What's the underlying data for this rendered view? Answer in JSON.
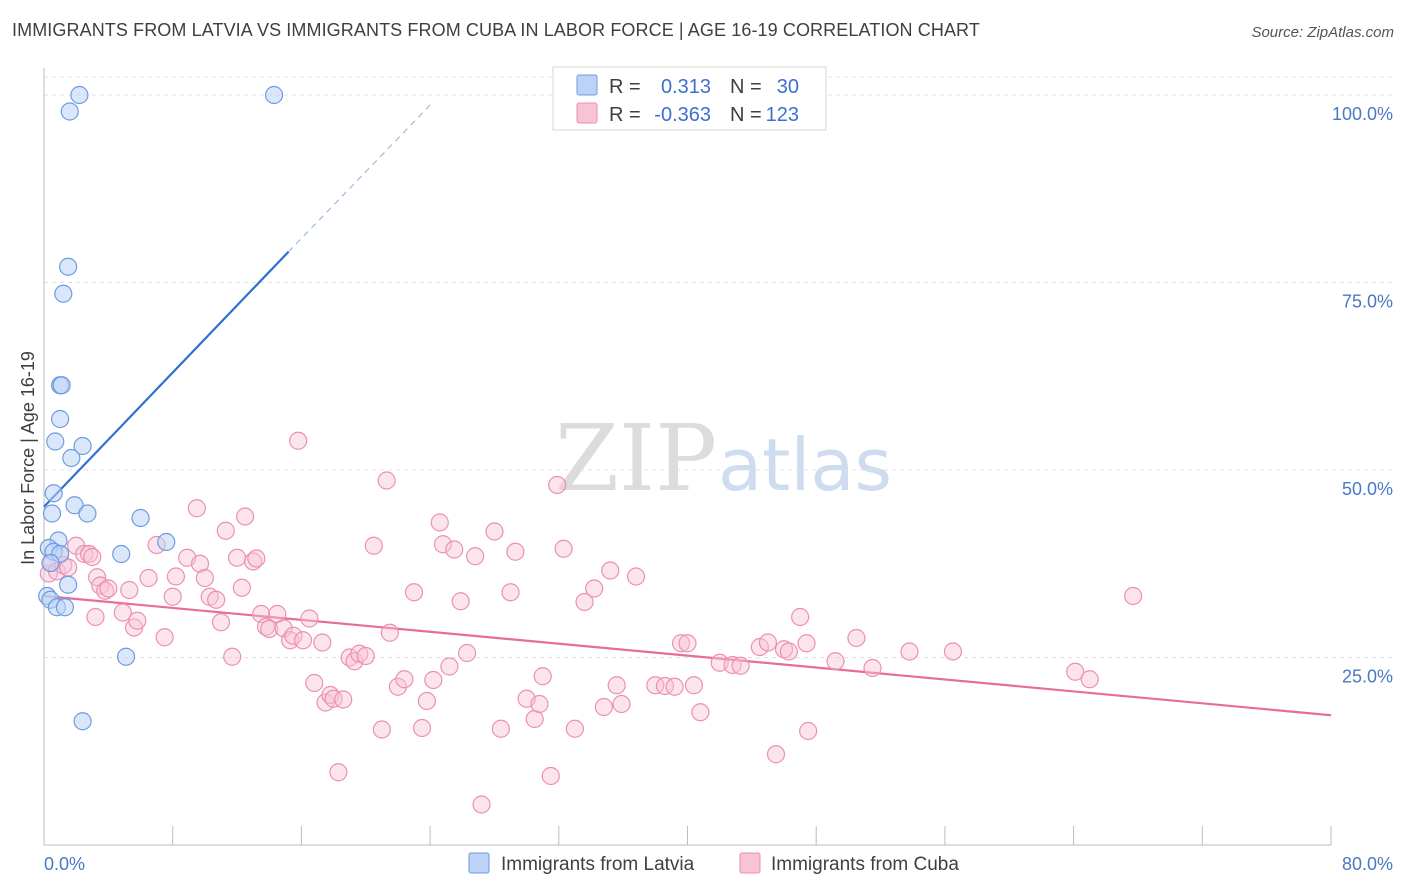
{
  "title": "IMMIGRANTS FROM LATVIA VS IMMIGRANTS FROM CUBA IN LABOR FORCE | AGE 16-19 CORRELATION CHART",
  "source": "Source: ZipAtlas.com",
  "watermark": {
    "zip": "ZIP",
    "atlas": "atlas"
  },
  "colors": {
    "latvia_fill": "#bcd3f5",
    "latvia_stroke": "#6d9be0",
    "latvia_line": "#2f6fd1",
    "cuba_fill": "#f8c3d6",
    "cuba_stroke": "#ec8fb1",
    "cuba_line": "#e86b9b",
    "tick_text": "#4a78c2",
    "grid": "#e0e0e0"
  },
  "legend": {
    "rows": [
      {
        "r_label": "R =",
        "r_value": "0.313",
        "n_label": "N =",
        "n_value": "30"
      },
      {
        "r_label": "R =",
        "r_value": "-0.363",
        "n_label": "N =",
        "n_value": "123"
      }
    ]
  },
  "chart_data": {
    "type": "scatter",
    "title": "IMMIGRANTS FROM LATVIA VS IMMIGRANTS FROM CUBA IN LABOR FORCE | AGE 16-19 CORRELATION CHART",
    "xlabel": "",
    "ylabel": "In Labor Force | Age 16-19",
    "xlim": [
      0,
      80
    ],
    "ylim": [
      0,
      102
    ],
    "x_tick_labels": [
      "0.0%",
      "80.0%"
    ],
    "y_ticks": [
      25,
      50,
      75,
      100
    ],
    "y_tick_labels": [
      "25.0%",
      "50.0%",
      "75.0%",
      "100.0%"
    ],
    "legend_position": "top-center",
    "series": [
      {
        "name": "Immigrants from Latvia",
        "R": 0.313,
        "N": 30,
        "trend": {
          "x_start": 0.0,
          "y_start": 45.1,
          "x_end": 15.2,
          "y_end": 79.1,
          "dashed_to_x": 24.2,
          "dashed_to_y": 99.1
        },
        "points": [
          [
            2.2,
            100.0
          ],
          [
            14.3,
            100.0
          ],
          [
            1.6,
            97.8
          ],
          [
            1.5,
            77.1
          ],
          [
            1.2,
            73.5
          ],
          [
            1.0,
            61.3
          ],
          [
            1.1,
            61.3
          ],
          [
            1.0,
            56.8
          ],
          [
            0.7,
            53.8
          ],
          [
            2.4,
            53.2
          ],
          [
            1.7,
            51.6
          ],
          [
            0.6,
            46.9
          ],
          [
            1.9,
            45.3
          ],
          [
            2.7,
            44.2
          ],
          [
            6.0,
            43.6
          ],
          [
            0.5,
            44.2
          ],
          [
            7.6,
            40.4
          ],
          [
            0.9,
            40.6
          ],
          [
            0.3,
            39.6
          ],
          [
            0.6,
            39.1
          ],
          [
            1.0,
            38.8
          ],
          [
            4.8,
            38.8
          ],
          [
            0.4,
            37.6
          ],
          [
            1.5,
            34.7
          ],
          [
            0.2,
            33.2
          ],
          [
            0.4,
            32.7
          ],
          [
            0.8,
            31.7
          ],
          [
            1.3,
            31.7
          ],
          [
            5.1,
            25.1
          ],
          [
            2.4,
            16.5
          ]
        ]
      },
      {
        "name": "Immigrants from Cuba",
        "R": -0.363,
        "N": 123,
        "trend": {
          "x_start": 0.0,
          "y_start": 33.2,
          "x_end": 80.0,
          "y_end": 17.3
        },
        "points": [
          [
            0.3,
            36.2
          ],
          [
            0.5,
            37.6
          ],
          [
            0.8,
            36.5
          ],
          [
            1.0,
            38.8
          ],
          [
            1.2,
            37.3
          ],
          [
            1.5,
            37.0
          ],
          [
            2.0,
            39.9
          ],
          [
            2.5,
            38.8
          ],
          [
            2.8,
            38.8
          ],
          [
            3.0,
            38.4
          ],
          [
            3.3,
            35.7
          ],
          [
            3.5,
            34.6
          ],
          [
            3.8,
            33.9
          ],
          [
            4.0,
            34.2
          ],
          [
            3.2,
            30.4
          ],
          [
            4.9,
            31.0
          ],
          [
            5.3,
            34.0
          ],
          [
            5.6,
            29.0
          ],
          [
            5.8,
            29.9
          ],
          [
            6.5,
            35.6
          ],
          [
            7.0,
            40.0
          ],
          [
            7.5,
            27.7
          ],
          [
            8.0,
            33.1
          ],
          [
            8.2,
            35.8
          ],
          [
            8.9,
            38.3
          ],
          [
            9.7,
            37.5
          ],
          [
            10.0,
            35.6
          ],
          [
            9.5,
            44.9
          ],
          [
            10.3,
            33.1
          ],
          [
            10.7,
            32.7
          ],
          [
            11.0,
            29.7
          ],
          [
            11.3,
            41.9
          ],
          [
            11.7,
            25.1
          ],
          [
            12.0,
            38.3
          ],
          [
            12.3,
            34.3
          ],
          [
            12.5,
            43.8
          ],
          [
            13.0,
            37.8
          ],
          [
            13.2,
            38.2
          ],
          [
            13.5,
            30.8
          ],
          [
            13.8,
            29.1
          ],
          [
            14.0,
            28.8
          ],
          [
            14.5,
            30.8
          ],
          [
            14.9,
            28.9
          ],
          [
            15.3,
            27.3
          ],
          [
            15.5,
            27.9
          ],
          [
            15.8,
            53.9
          ],
          [
            16.1,
            27.3
          ],
          [
            16.5,
            30.2
          ],
          [
            16.8,
            21.6
          ],
          [
            17.3,
            27.0
          ],
          [
            17.5,
            19.0
          ],
          [
            17.8,
            20.0
          ],
          [
            18.0,
            19.5
          ],
          [
            18.3,
            9.7
          ],
          [
            18.6,
            19.4
          ],
          [
            19.0,
            25.0
          ],
          [
            19.3,
            24.5
          ],
          [
            19.6,
            25.5
          ],
          [
            20.0,
            25.2
          ],
          [
            20.5,
            39.9
          ],
          [
            21.0,
            15.4
          ],
          [
            21.3,
            48.6
          ],
          [
            21.5,
            28.3
          ],
          [
            22.0,
            21.1
          ],
          [
            22.4,
            22.1
          ],
          [
            23.0,
            33.7
          ],
          [
            23.5,
            15.6
          ],
          [
            23.8,
            19.2
          ],
          [
            24.2,
            22.0
          ],
          [
            24.6,
            43.0
          ],
          [
            24.8,
            40.1
          ],
          [
            25.2,
            23.8
          ],
          [
            25.5,
            39.4
          ],
          [
            25.9,
            32.5
          ],
          [
            26.3,
            25.6
          ],
          [
            26.8,
            38.5
          ],
          [
            27.2,
            5.4
          ],
          [
            28.0,
            41.8
          ],
          [
            28.4,
            15.5
          ],
          [
            29.0,
            33.7
          ],
          [
            29.3,
            39.1
          ],
          [
            30.0,
            19.5
          ],
          [
            30.5,
            16.8
          ],
          [
            30.8,
            18.8
          ],
          [
            31.0,
            22.5
          ],
          [
            31.5,
            9.2
          ],
          [
            31.9,
            48.0
          ],
          [
            32.3,
            39.5
          ],
          [
            33.0,
            15.5
          ],
          [
            33.6,
            32.4
          ],
          [
            34.2,
            34.2
          ],
          [
            34.8,
            18.4
          ],
          [
            35.2,
            36.6
          ],
          [
            35.6,
            21.3
          ],
          [
            35.9,
            18.8
          ],
          [
            36.8,
            35.8
          ],
          [
            38.0,
            21.3
          ],
          [
            38.6,
            21.2
          ],
          [
            39.2,
            21.1
          ],
          [
            39.6,
            26.9
          ],
          [
            40.0,
            26.9
          ],
          [
            40.4,
            21.3
          ],
          [
            40.8,
            17.7
          ],
          [
            42.0,
            24.3
          ],
          [
            42.8,
            24.0
          ],
          [
            43.3,
            23.9
          ],
          [
            44.5,
            26.4
          ],
          [
            45.0,
            27.0
          ],
          [
            45.5,
            12.1
          ],
          [
            46.0,
            26.1
          ],
          [
            46.3,
            25.8
          ],
          [
            47.0,
            30.4
          ],
          [
            47.4,
            26.9
          ],
          [
            47.5,
            15.2
          ],
          [
            49.2,
            24.5
          ],
          [
            50.5,
            27.6
          ],
          [
            51.5,
            23.6
          ],
          [
            53.8,
            25.8
          ],
          [
            56.5,
            25.8
          ],
          [
            64.1,
            23.1
          ],
          [
            65.0,
            22.1
          ],
          [
            67.7,
            33.2
          ]
        ]
      }
    ]
  },
  "bottom_legend": {
    "items": [
      {
        "label": "Immigrants from Latvia"
      },
      {
        "label": "Immigrants from Cuba"
      }
    ]
  }
}
